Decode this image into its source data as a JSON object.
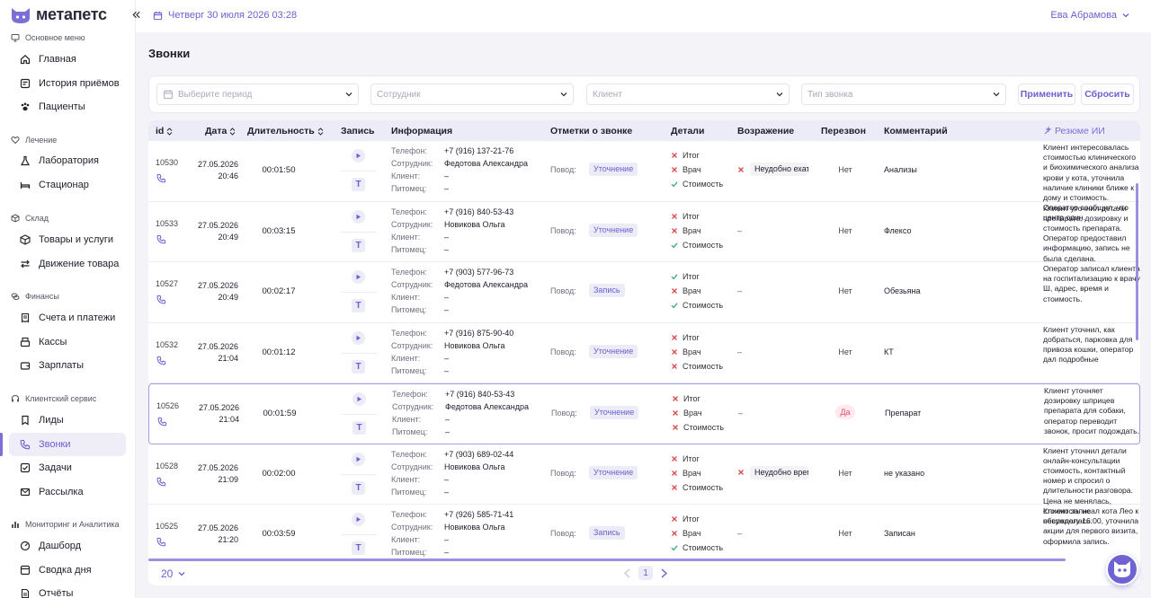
{
  "app": {
    "logo_text": "метапетс"
  },
  "header": {
    "datetime": "Четверг 30 июля 2026 03:28",
    "user_name": "Ева Абрамова"
  },
  "sidebar": {
    "sections": [
      {
        "title": "Основное меню",
        "icon": "monitor-icon"
      },
      {
        "title": "Лечение",
        "icon": "heart-icon"
      },
      {
        "title": "Склад",
        "icon": "box-icon"
      },
      {
        "title": "Финансы",
        "icon": "coins-icon"
      },
      {
        "title": "Клиентский сервис",
        "icon": "headset-icon"
      },
      {
        "title": "Мониторинг и Аналитика",
        "icon": "chart-icon"
      }
    ],
    "items": [
      {
        "label": "Главная",
        "icon": "home-icon"
      },
      {
        "label": "История приёмов",
        "icon": "history-icon"
      },
      {
        "label": "Пациенты",
        "icon": "paw-icon"
      },
      {
        "label": "Лаборатория",
        "icon": "flask-icon"
      },
      {
        "label": "Стационар",
        "icon": "bed-icon"
      },
      {
        "label": "Товары и услуги",
        "icon": "box-icon"
      },
      {
        "label": "Движение товара",
        "icon": "arrows-icon"
      },
      {
        "label": "Счета и платежи",
        "icon": "invoice-icon"
      },
      {
        "label": "Кассы",
        "icon": "register-icon"
      },
      {
        "label": "Зарплаты",
        "icon": "wallet-icon"
      },
      {
        "label": "Лиды",
        "icon": "lead-icon"
      },
      {
        "label": "Звонки",
        "icon": "phone-icon",
        "active": true
      },
      {
        "label": "Задачи",
        "icon": "task-icon"
      },
      {
        "label": "Рассылка",
        "icon": "mail-icon"
      },
      {
        "label": "Дашборд",
        "icon": "dashboard-icon"
      },
      {
        "label": "Сводка дня",
        "icon": "summary-icon"
      },
      {
        "label": "Отчёты",
        "icon": "report-icon"
      }
    ]
  },
  "page": {
    "title": "Звонки"
  },
  "filters": {
    "period_placeholder": "Выберите период",
    "employee_placeholder": "Сотрудник",
    "client_placeholder": "Клиент",
    "call_type_placeholder": "Тип звонка",
    "apply_label": "Применить",
    "reset_label": "Сбросить"
  },
  "table": {
    "columns": {
      "id": "id",
      "date": "Дата",
      "duration": "Длительность",
      "record": "Запись",
      "info": "Информация",
      "marks": "Отметки о звонке",
      "details": "Детали",
      "objection": "Возражение",
      "recall": "Перезвон",
      "comment": "Комментарий",
      "ai_summary": "Резюме ИИ"
    },
    "labels": {
      "phone": "Телефон:",
      "employee": "Сотрудник:",
      "client": "Клиент:",
      "pet": "Питомец:",
      "reason": "Повод:",
      "detail_result": "Итог",
      "detail_doctor": "Врач",
      "detail_cost": "Стоимость",
      "text_button": "T"
    },
    "rows": [
      {
        "id": "10530",
        "date": "27.05.2026",
        "time": "20:46",
        "duration": "00:01:50",
        "phone": "+7 (916) 137-21-76",
        "employee": "Федотова Александра",
        "client": "–",
        "pet": "–",
        "reason": "Уточнение",
        "details": {
          "result": false,
          "doctor": false,
          "cost": true
        },
        "objection": "Неудобно ехать",
        "recall": "Нет",
        "recall_yes": false,
        "comment": "Анализы",
        "ai_summary": "Клиент интересовалась стоимостью клинического и биохимического анализа крови у кота, уточнила наличие клиники ближе к дому и стоимость. Оператор сообщил, что центр один."
      },
      {
        "id": "10533",
        "date": "27.05.2026",
        "time": "20:49",
        "duration": "00:03:15",
        "phone": "+7 (916) 840-53-43",
        "employee": "Новикова Ольга",
        "client": "–",
        "pet": "–",
        "reason": "Уточнение",
        "details": {
          "result": false,
          "doctor": false,
          "cost": true
        },
        "objection": "–",
        "recall": "Нет",
        "recall_yes": false,
        "comment": "Флексо",
        "ai_summary": "Клиент уточнил детали препарата, дозировку и стоимость препарата. Оператор предоставил информацию, запись не была сделана."
      },
      {
        "id": "10527",
        "date": "27.05.2026",
        "time": "20:49",
        "duration": "00:02:17",
        "phone": "+7 (903) 577-96-73",
        "employee": "Федотова Александра",
        "client": "–",
        "pet": "–",
        "reason": "Запись",
        "details": {
          "result": true,
          "doctor": false,
          "cost": true
        },
        "objection": "–",
        "recall": "Нет",
        "recall_yes": false,
        "comment": "Обезьяна",
        "ai_summary": "Оператор записал клиента на госпитализацию к врачу Ш, адрес, время и стоимость."
      },
      {
        "id": "10532",
        "date": "27.05.2026",
        "time": "21:04",
        "duration": "00:01:12",
        "phone": "+7 (916) 875-90-40",
        "employee": "Новикова Ольга",
        "client": "–",
        "pet": "–",
        "reason": "Уточнение",
        "details": {
          "result": false,
          "doctor": false,
          "cost": false
        },
        "objection": "–",
        "recall": "Нет",
        "recall_yes": false,
        "comment": "КТ",
        "ai_summary": "Клиент уточнил, как добраться, парковка для привоза кошки, оператор дал подробные"
      },
      {
        "id": "10526",
        "date": "27.05.2026",
        "time": "21:04",
        "duration": "00:01:59",
        "phone": "+7 (916) 840-53-43",
        "employee": "Федотова Александра",
        "client": "–",
        "pet": "–",
        "reason": "Уточнение",
        "details": {
          "result": false,
          "doctor": false,
          "cost": false
        },
        "objection": "–",
        "recall": "Да",
        "recall_yes": true,
        "comment": "Препарат",
        "ai_summary": "Клиент уточняет дозировку шприцев препарата для собаки, оператор переводит звонок, просит подождать."
      },
      {
        "id": "10528",
        "date": "27.05.2026",
        "time": "21:09",
        "duration": "00:02:00",
        "phone": "+7 (903) 689-02-44",
        "employee": "Новикова Ольга",
        "client": "–",
        "pet": "–",
        "reason": "Уточнение",
        "details": {
          "result": false,
          "doctor": false,
          "cost": false
        },
        "objection": "Неудобно время",
        "recall": "Нет",
        "recall_yes": false,
        "comment": "не указано",
        "ai_summary": "Клиент уточнил детали онлайн-консультации стоимость, контактный номер и спросил о длительности разговора. Цена не менялась, стоимость не обсуждалась."
      },
      {
        "id": "10525",
        "date": "27.05.2026",
        "time": "21:20",
        "duration": "00:03:59",
        "phone": "+7 (926) 585-71-41",
        "employee": "Новикова Ольга",
        "client": "–",
        "pet": "–",
        "reason": "Запись",
        "details": {
          "result": false,
          "doctor": false,
          "cost": true
        },
        "objection": "–",
        "recall": "Нет",
        "recall_yes": false,
        "comment": "Записан",
        "ai_summary": "Клиент записал кота Лео к неврологу 16:00, уточнила акции для первого визита, оформила запись."
      }
    ]
  },
  "pagination": {
    "page_size": "20",
    "current_page": "1"
  },
  "colors": {
    "accent": "#6b5fcf",
    "accent_light": "#ecebf8",
    "danger": "#d84a4a",
    "success": "#3aa872",
    "recall_yes": "#e04f73"
  }
}
